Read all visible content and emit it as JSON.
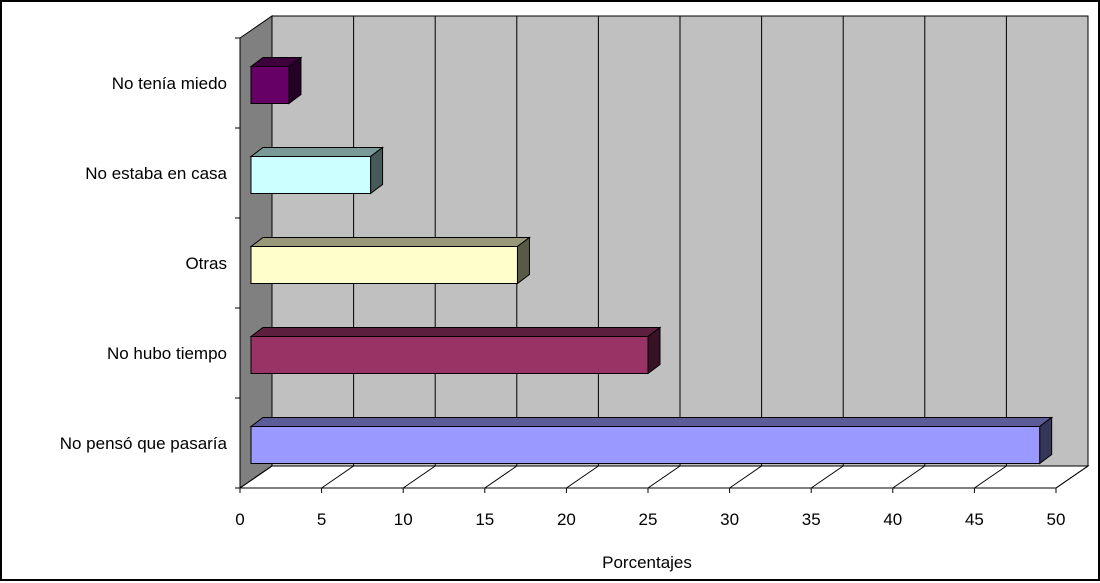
{
  "chart_data": {
    "type": "bar",
    "orientation": "horizontal",
    "three_d": true,
    "categories": [
      "No tenía miedo",
      "No estaba en casa",
      "Otras",
      "No hubo tiempo",
      "No pensó que pasaría"
    ],
    "values": [
      3,
      8,
      17,
      25,
      49
    ],
    "colors": [
      "#660066",
      "#ccffff",
      "#ffffcc",
      "#993366",
      "#9999ff"
    ],
    "xlabel": "Porcentajes",
    "ylabel": "",
    "title": "",
    "xlim": [
      0,
      50
    ],
    "xticks": [
      0,
      5,
      10,
      15,
      20,
      25,
      30,
      35,
      40,
      45,
      50
    ],
    "grid": true,
    "wall_color": "#c0c0c0",
    "side_wall_color": "#808080",
    "floor_color": "#ffffff"
  }
}
